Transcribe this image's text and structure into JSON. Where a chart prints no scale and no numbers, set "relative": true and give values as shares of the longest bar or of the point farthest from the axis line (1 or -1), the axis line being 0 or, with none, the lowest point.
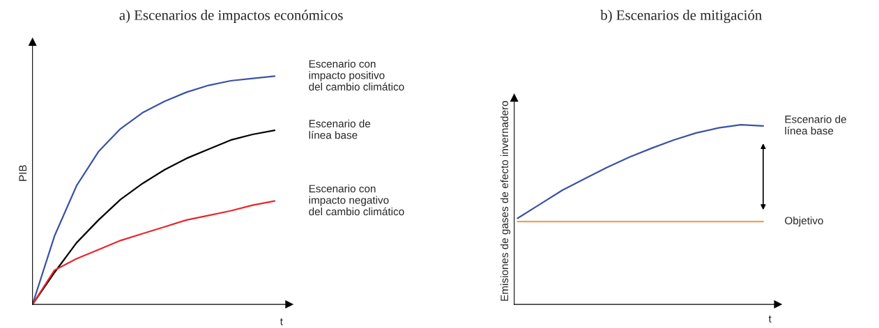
{
  "chart_data": [
    {
      "type": "line",
      "title": "a) Escenarios de impactos económicos",
      "xlabel": "t",
      "ylabel": "PIB",
      "relative": true,
      "categories": [
        null,
        null,
        null,
        null,
        null,
        null,
        null,
        null,
        null,
        null,
        null,
        null
      ],
      "series": [
        {
          "name": "Escenario con\nimpacto positivo\ndel cambio climático",
          "color": "#3a52a4",
          "values": [
            0,
            0.3,
            0.52,
            0.67,
            0.77,
            0.84,
            0.89,
            0.93,
            0.96,
            0.98,
            0.99,
            1
          ]
        },
        {
          "name": "Escenario de\nlínea base",
          "color": "#000000",
          "values": [
            0,
            0.14,
            0.27,
            0.37,
            0.46,
            0.53,
            0.59,
            0.64,
            0.68,
            0.72,
            0.745,
            0.763
          ]
        },
        {
          "name": "Escenario con\nimpacto negativo\ndel cambio climático",
          "color": "#e8262a",
          "values": [
            0,
            0.15,
            0.2,
            0.24,
            0.28,
            0.31,
            0.34,
            0.37,
            0.39,
            0.41,
            0.435,
            0.453
          ]
        }
      ]
    },
    {
      "type": "line",
      "title": "b) Escenarios de mitigación",
      "xlabel": "t",
      "ylabel": "Emisiones de gases de efecto invernadero",
      "relative": true,
      "categories": [
        null,
        null,
        null,
        null,
        null,
        null,
        null,
        null,
        null,
        null,
        null,
        null
      ],
      "series": [
        {
          "name": "Escenario de\nlínea base",
          "color": "#3a52a4",
          "values": [
            0.479,
            0.557,
            0.635,
            0.699,
            0.762,
            0.819,
            0.869,
            0.915,
            0.954,
            0.982,
            1,
            0.993
          ]
        },
        {
          "name": "Objetivo",
          "color": "#f0a050",
          "values": [
            0.461,
            0.461,
            0.461,
            0.461,
            0.461,
            0.461,
            0.461,
            0.461,
            0.461,
            0.461,
            0.461,
            0.461
          ]
        }
      ]
    }
  ]
}
